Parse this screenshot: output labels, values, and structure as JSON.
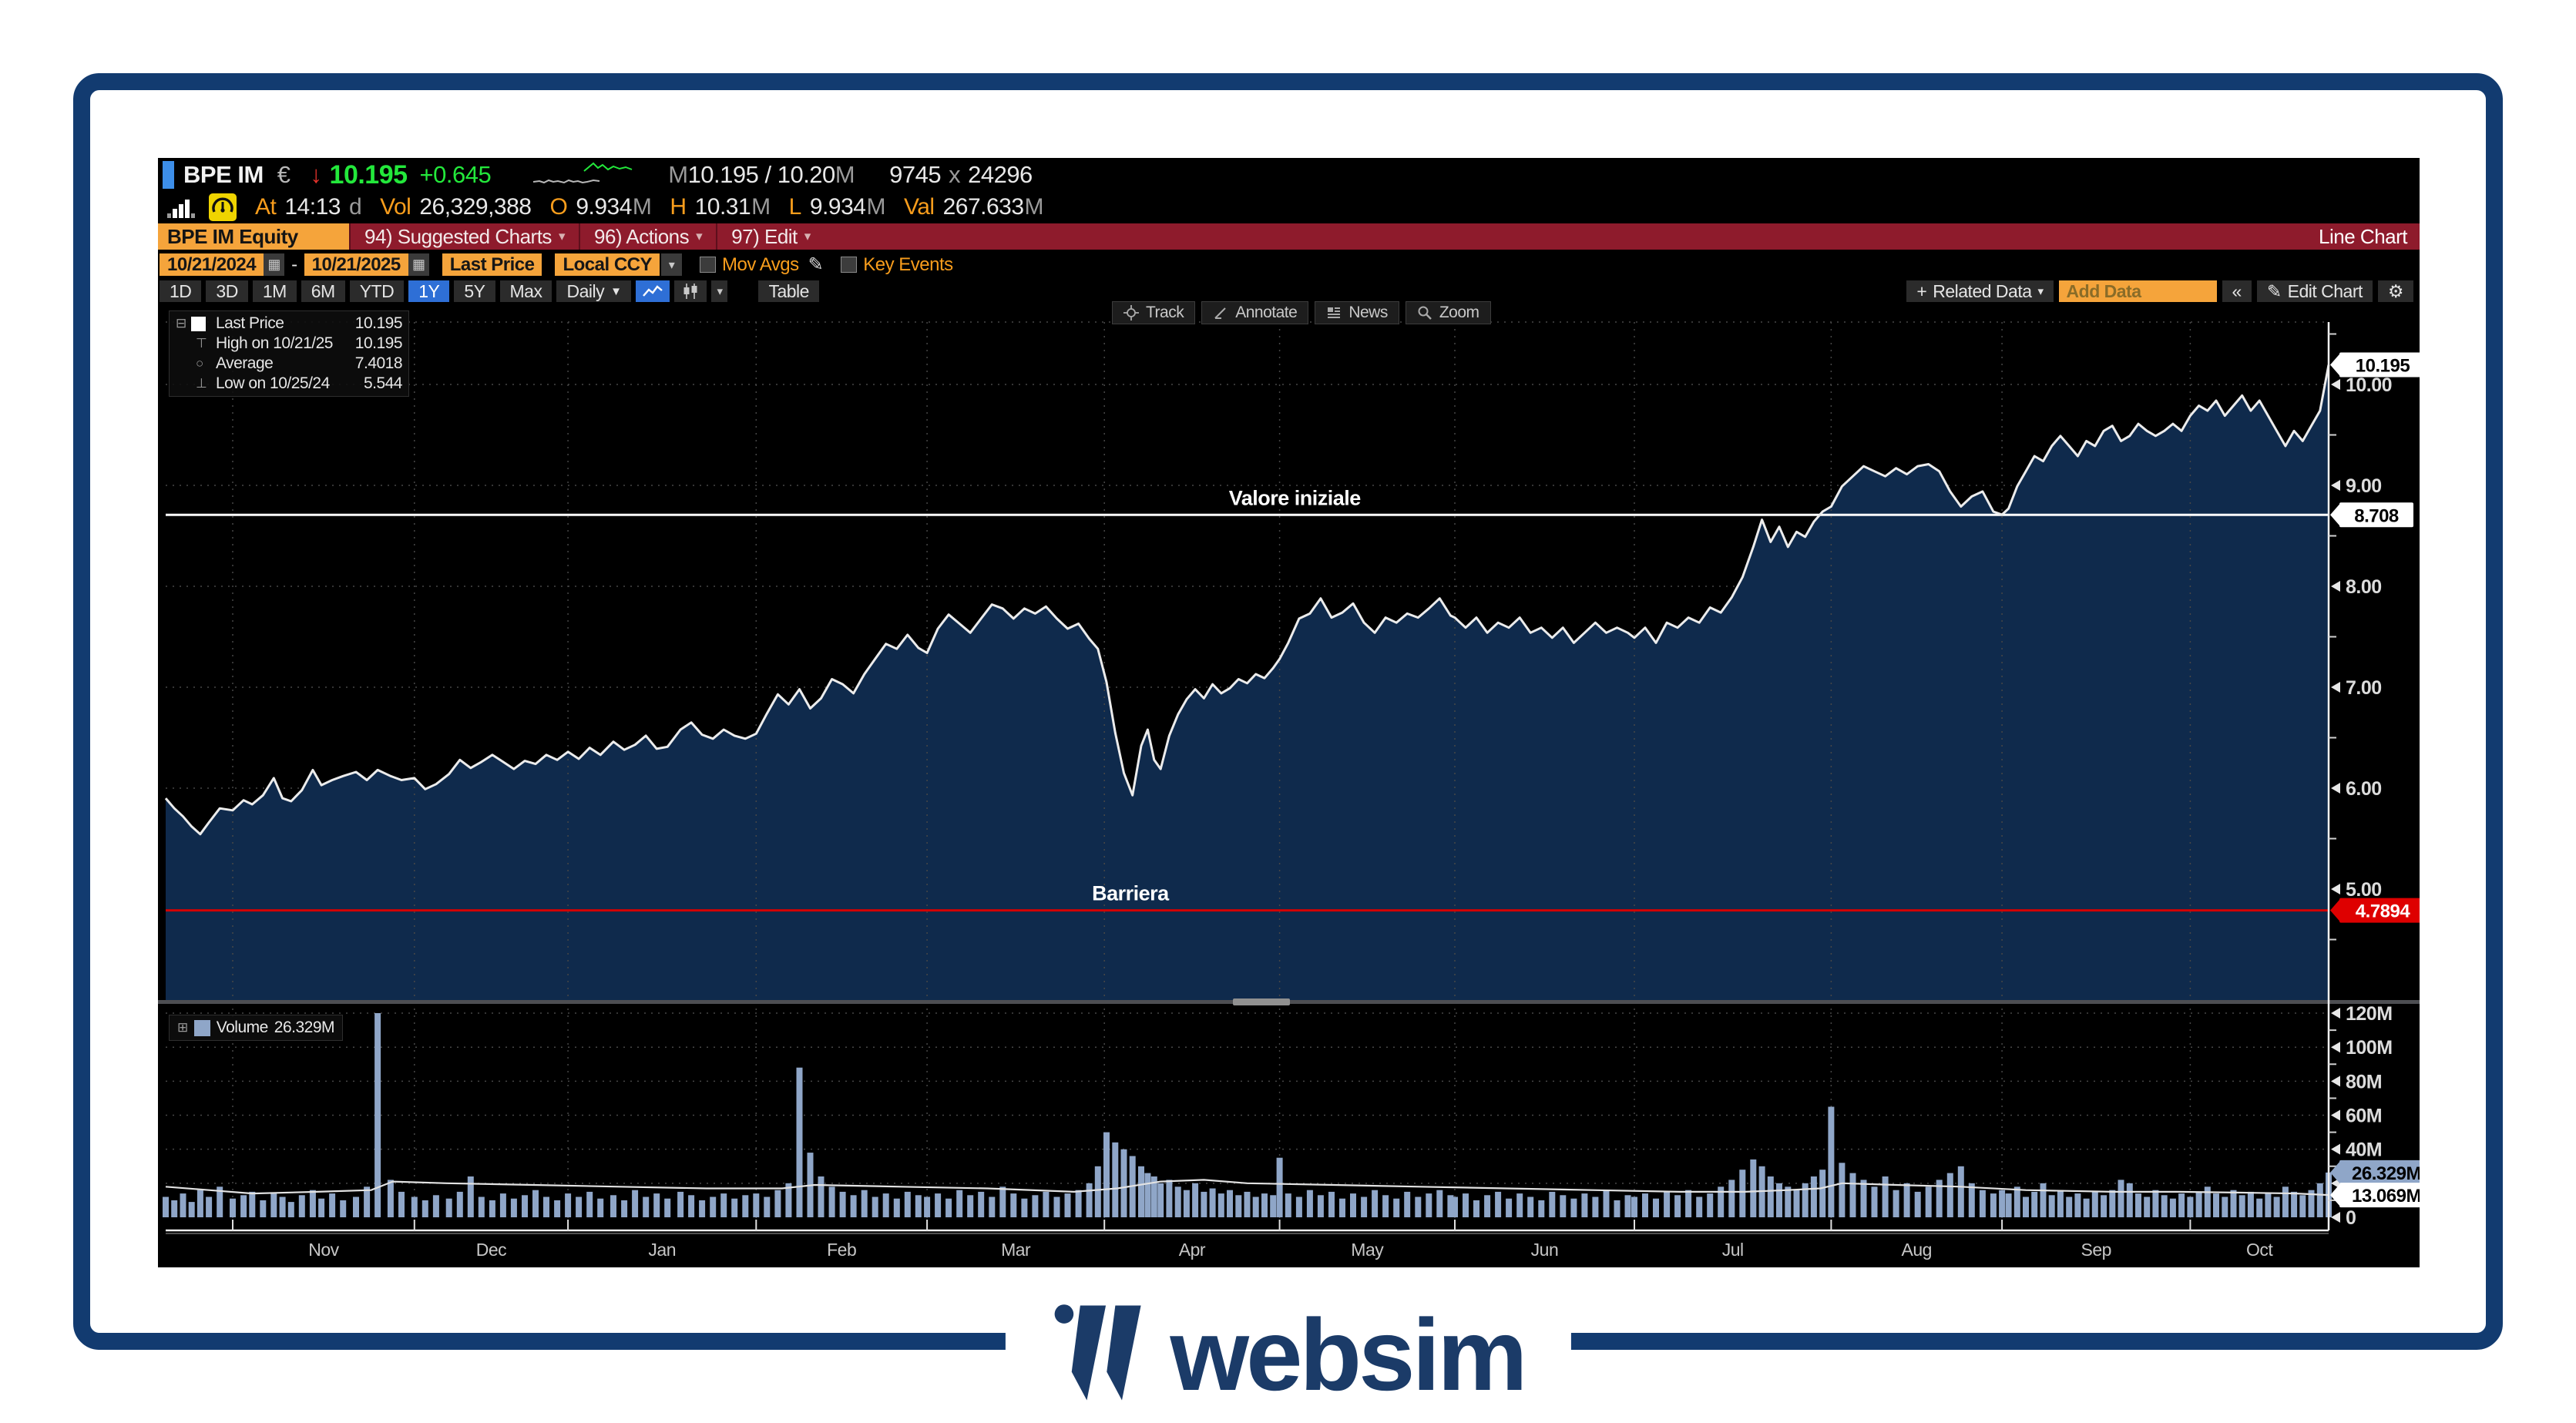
{
  "topbar": {
    "ticker": "BPE IM",
    "currency": "€",
    "last": "10.195",
    "change": "+0.645",
    "bid_ask_pre": "M",
    "bid_ask": "10.195 / 10.20",
    "bid_ask_suf": "M",
    "size_bid": "9745",
    "size_x": "x",
    "size_ask": "24296",
    "at_label": "At",
    "time": "14:13",
    "session": "d",
    "vol_label": "Vol",
    "volume": "26,329,388",
    "o_label": "O",
    "open": "9.934",
    "h_label": "H",
    "high": "10.31",
    "l_label": "L",
    "low": "9.934",
    "val_label": "Val",
    "val": "267.633",
    "msfx": "M",
    "spark": {
      "gray": [
        [
          0,
          28
        ],
        [
          8,
          27
        ],
        [
          14,
          29
        ],
        [
          20,
          26
        ],
        [
          26,
          28
        ],
        [
          32,
          27
        ],
        [
          40,
          29
        ],
        [
          46,
          26
        ],
        [
          52,
          28
        ],
        [
          58,
          27
        ],
        [
          64,
          29
        ],
        [
          70,
          28
        ],
        [
          78,
          26
        ],
        [
          86,
          27
        ]
      ],
      "green": [
        [
          66,
          14
        ],
        [
          72,
          9
        ],
        [
          78,
          4
        ],
        [
          84,
          10
        ],
        [
          90,
          6
        ],
        [
          97,
          12
        ],
        [
          104,
          8
        ],
        [
          112,
          11
        ],
        [
          120,
          9
        ],
        [
          128,
          12
        ]
      ]
    }
  },
  "menubar": {
    "security": "BPE IM Equity",
    "items": [
      "94) Suggested Charts",
      "96) Actions",
      "97) Edit"
    ],
    "right": "Line Chart"
  },
  "datebar": {
    "from": "10/21/2024",
    "dash": "-",
    "to": "10/21/2025",
    "price_type": "Last Price",
    "ccy": "Local CCY",
    "mov_avgs": "Mov Avgs",
    "key_events": "Key Events"
  },
  "periodbar": {
    "periods": [
      "1D",
      "3D",
      "1M",
      "6M",
      "YTD",
      "1Y",
      "5Y",
      "Max"
    ],
    "selected": "1Y",
    "freq": "Daily",
    "table": "Table",
    "related": "Related Data",
    "add_data": "Add Data",
    "edit_chart": "Edit Chart"
  },
  "chart_toolbar": {
    "track": "Track",
    "annotate": "Annotate",
    "news": "News",
    "zoom": "Zoom"
  },
  "legend": {
    "rows": [
      {
        "label": "Last Price",
        "value": "10.195"
      },
      {
        "label": "High on 10/21/25",
        "value": "10.195"
      },
      {
        "label": "Average",
        "value": "7.4018"
      },
      {
        "label": "Low on 10/25/24",
        "value": "5.544"
      }
    ]
  },
  "volume_legend": {
    "label": "Volume",
    "value": "26.329M"
  },
  "footer": {
    "brand": "websim"
  },
  "chart_data": {
    "type": "line",
    "title": "BPE IM Equity Last Price 10/21/2024 - 10/21/2025 Daily",
    "ylim": [
      3.9,
      10.62
    ],
    "vol_ylim": [
      0,
      132
    ],
    "colors": {
      "fill": "#0F2A4C",
      "volume": "#8FA6C8",
      "line": "#ECECEC",
      "barrier": "#D40000",
      "initial": "#FFFFFF"
    },
    "price_ticks": [
      {
        "v": 10,
        "label": "10.00"
      },
      {
        "v": 9,
        "label": "9.00"
      },
      {
        "v": 8,
        "label": "8.00"
      },
      {
        "v": 7,
        "label": "7.00"
      },
      {
        "v": 6,
        "label": "6.00"
      },
      {
        "v": 5,
        "label": "5.00"
      }
    ],
    "minor_price": [
      10.5,
      9.5,
      8.5,
      7.5,
      6.5,
      5.5,
      4.5
    ],
    "vol_ticks": [
      {
        "v": 120,
        "label": "120M"
      },
      {
        "v": 100,
        "label": "100M"
      },
      {
        "v": 80,
        "label": "80M"
      },
      {
        "v": 60,
        "label": "60M"
      },
      {
        "v": 40,
        "label": "40M"
      },
      {
        "v": 20,
        "label": ""
      },
      {
        "v": 0,
        "label": "0"
      }
    ],
    "minor_vol": [
      110,
      90,
      70,
      50,
      30,
      10
    ],
    "month_ticks": [
      0.031,
      0.115,
      0.186,
      0.273,
      0.352,
      0.434,
      0.515,
      0.596,
      0.679,
      0.77,
      0.849,
      0.936
    ],
    "month_labels": [
      "Nov",
      "Dec",
      "Jan",
      "Feb",
      "Mar",
      "Apr",
      "May",
      "Jun",
      "Jul",
      "Aug",
      "Sep",
      "Oct"
    ],
    "hlines": [
      {
        "v": 8.708,
        "color": "#FFFFFF",
        "label": "Valore iniziale",
        "label_t": 0.522
      },
      {
        "v": 4.7894,
        "color": "#D40000",
        "label": "Barriera",
        "label_t": 0.446
      }
    ],
    "price_badges": [
      {
        "v": 10.195,
        "label": "10.195",
        "bg": "#FFFFFF",
        "fg": "#000000",
        "w": 112
      },
      {
        "v": 8.708,
        "label": "8.708",
        "bg": "#FFFFFF",
        "fg": "#000000",
        "w": 96
      },
      {
        "v": 4.7894,
        "label": "4.7894",
        "bg": "#DE0000",
        "fg": "#FFFFFF",
        "w": 112
      }
    ],
    "vol_badges": [
      {
        "v": 26.329,
        "label": "26.329M",
        "bg": "#8FA6C8",
        "fg": "#000000",
        "w": 122
      },
      {
        "v": 13.069,
        "label": "13.069M",
        "bg": "#FFFFFF",
        "fg": "#000000",
        "w": 122
      }
    ],
    "price": [
      [
        0,
        5.9
      ],
      [
        0.004,
        5.8
      ],
      [
        0.008,
        5.72
      ],
      [
        0.012,
        5.62
      ],
      [
        0.016,
        5.544
      ],
      [
        0.02,
        5.66
      ],
      [
        0.025,
        5.8
      ],
      [
        0.031,
        5.78
      ],
      [
        0.036,
        5.88
      ],
      [
        0.04,
        5.84
      ],
      [
        0.045,
        5.93
      ],
      [
        0.05,
        6.1
      ],
      [
        0.054,
        5.9
      ],
      [
        0.058,
        5.87
      ],
      [
        0.063,
        5.98
      ],
      [
        0.068,
        6.18
      ],
      [
        0.072,
        6.03
      ],
      [
        0.077,
        6.08
      ],
      [
        0.082,
        6.12
      ],
      [
        0.088,
        6.16
      ],
      [
        0.093,
        6.08
      ],
      [
        0.098,
        6.18
      ],
      [
        0.104,
        6.12
      ],
      [
        0.109,
        6.08
      ],
      [
        0.115,
        6.1
      ],
      [
        0.12,
        5.99
      ],
      [
        0.125,
        6.04
      ],
      [
        0.131,
        6.14
      ],
      [
        0.136,
        6.28
      ],
      [
        0.141,
        6.2
      ],
      [
        0.146,
        6.26
      ],
      [
        0.151,
        6.33
      ],
      [
        0.156,
        6.26
      ],
      [
        0.161,
        6.19
      ],
      [
        0.166,
        6.27
      ],
      [
        0.171,
        6.24
      ],
      [
        0.176,
        6.33
      ],
      [
        0.181,
        6.28
      ],
      [
        0.186,
        6.36
      ],
      [
        0.191,
        6.29
      ],
      [
        0.196,
        6.4
      ],
      [
        0.201,
        6.33
      ],
      [
        0.207,
        6.46
      ],
      [
        0.212,
        6.38
      ],
      [
        0.217,
        6.43
      ],
      [
        0.222,
        6.52
      ],
      [
        0.227,
        6.39
      ],
      [
        0.232,
        6.41
      ],
      [
        0.238,
        6.58
      ],
      [
        0.243,
        6.65
      ],
      [
        0.248,
        6.53
      ],
      [
        0.253,
        6.49
      ],
      [
        0.258,
        6.58
      ],
      [
        0.263,
        6.52
      ],
      [
        0.268,
        6.49
      ],
      [
        0.273,
        6.54
      ],
      [
        0.278,
        6.74
      ],
      [
        0.283,
        6.93
      ],
      [
        0.288,
        6.83
      ],
      [
        0.293,
        6.98
      ],
      [
        0.298,
        6.79
      ],
      [
        0.303,
        6.89
      ],
      [
        0.308,
        7.08
      ],
      [
        0.313,
        7.03
      ],
      [
        0.318,
        6.94
      ],
      [
        0.323,
        7.13
      ],
      [
        0.328,
        7.28
      ],
      [
        0.333,
        7.43
      ],
      [
        0.338,
        7.38
      ],
      [
        0.343,
        7.52
      ],
      [
        0.348,
        7.39
      ],
      [
        0.352,
        7.34
      ],
      [
        0.357,
        7.58
      ],
      [
        0.362,
        7.72
      ],
      [
        0.367,
        7.63
      ],
      [
        0.372,
        7.54
      ],
      [
        0.377,
        7.68
      ],
      [
        0.382,
        7.82
      ],
      [
        0.387,
        7.78
      ],
      [
        0.392,
        7.68
      ],
      [
        0.397,
        7.78
      ],
      [
        0.402,
        7.73
      ],
      [
        0.407,
        7.8
      ],
      [
        0.412,
        7.68
      ],
      [
        0.417,
        7.58
      ],
      [
        0.422,
        7.63
      ],
      [
        0.427,
        7.48
      ],
      [
        0.431,
        7.38
      ],
      [
        0.435,
        7.05
      ],
      [
        0.439,
        6.55
      ],
      [
        0.443,
        6.15
      ],
      [
        0.447,
        5.93
      ],
      [
        0.451,
        6.42
      ],
      [
        0.454,
        6.58
      ],
      [
        0.457,
        6.28
      ],
      [
        0.46,
        6.19
      ],
      [
        0.464,
        6.52
      ],
      [
        0.468,
        6.73
      ],
      [
        0.472,
        6.88
      ],
      [
        0.476,
        6.98
      ],
      [
        0.48,
        6.89
      ],
      [
        0.484,
        7.03
      ],
      [
        0.488,
        6.94
      ],
      [
        0.492,
        6.99
      ],
      [
        0.496,
        7.08
      ],
      [
        0.5,
        7.04
      ],
      [
        0.504,
        7.13
      ],
      [
        0.508,
        7.09
      ],
      [
        0.512,
        7.19
      ],
      [
        0.515,
        7.28
      ],
      [
        0.519,
        7.44
      ],
      [
        0.524,
        7.68
      ],
      [
        0.529,
        7.73
      ],
      [
        0.534,
        7.88
      ],
      [
        0.539,
        7.69
      ],
      [
        0.544,
        7.74
      ],
      [
        0.549,
        7.83
      ],
      [
        0.554,
        7.64
      ],
      [
        0.559,
        7.54
      ],
      [
        0.564,
        7.69
      ],
      [
        0.569,
        7.64
      ],
      [
        0.574,
        7.73
      ],
      [
        0.579,
        7.69
      ],
      [
        0.584,
        7.78
      ],
      [
        0.589,
        7.88
      ],
      [
        0.594,
        7.71
      ],
      [
        0.596,
        7.69
      ],
      [
        0.601,
        7.59
      ],
      [
        0.606,
        7.69
      ],
      [
        0.611,
        7.54
      ],
      [
        0.616,
        7.64
      ],
      [
        0.621,
        7.59
      ],
      [
        0.626,
        7.69
      ],
      [
        0.631,
        7.54
      ],
      [
        0.636,
        7.59
      ],
      [
        0.641,
        7.49
      ],
      [
        0.646,
        7.59
      ],
      [
        0.651,
        7.44
      ],
      [
        0.656,
        7.54
      ],
      [
        0.661,
        7.64
      ],
      [
        0.666,
        7.54
      ],
      [
        0.671,
        7.59
      ],
      [
        0.676,
        7.54
      ],
      [
        0.679,
        7.49
      ],
      [
        0.684,
        7.59
      ],
      [
        0.689,
        7.44
      ],
      [
        0.694,
        7.64
      ],
      [
        0.699,
        7.59
      ],
      [
        0.704,
        7.69
      ],
      [
        0.709,
        7.64
      ],
      [
        0.714,
        7.79
      ],
      [
        0.719,
        7.74
      ],
      [
        0.724,
        7.89
      ],
      [
        0.729,
        8.09
      ],
      [
        0.734,
        8.39
      ],
      [
        0.738,
        8.66
      ],
      [
        0.742,
        8.44
      ],
      [
        0.746,
        8.59
      ],
      [
        0.75,
        8.39
      ],
      [
        0.754,
        8.54
      ],
      [
        0.758,
        8.49
      ],
      [
        0.762,
        8.64
      ],
      [
        0.766,
        8.74
      ],
      [
        0.77,
        8.79
      ],
      [
        0.775,
        8.99
      ],
      [
        0.78,
        9.09
      ],
      [
        0.785,
        9.19
      ],
      [
        0.79,
        9.14
      ],
      [
        0.795,
        9.09
      ],
      [
        0.8,
        9.17
      ],
      [
        0.805,
        9.11
      ],
      [
        0.81,
        9.19
      ],
      [
        0.815,
        9.21
      ],
      [
        0.82,
        9.14
      ],
      [
        0.825,
        8.94
      ],
      [
        0.83,
        8.79
      ],
      [
        0.835,
        8.89
      ],
      [
        0.84,
        8.94
      ],
      [
        0.845,
        8.74
      ],
      [
        0.849,
        8.71
      ],
      [
        0.852,
        8.77
      ],
      [
        0.856,
        8.99
      ],
      [
        0.86,
        9.14
      ],
      [
        0.864,
        9.29
      ],
      [
        0.868,
        9.24
      ],
      [
        0.872,
        9.39
      ],
      [
        0.876,
        9.49
      ],
      [
        0.88,
        9.39
      ],
      [
        0.884,
        9.29
      ],
      [
        0.888,
        9.44
      ],
      [
        0.892,
        9.39
      ],
      [
        0.896,
        9.54
      ],
      [
        0.9,
        9.59
      ],
      [
        0.904,
        9.44
      ],
      [
        0.908,
        9.49
      ],
      [
        0.912,
        9.61
      ],
      [
        0.916,
        9.54
      ],
      [
        0.92,
        9.49
      ],
      [
        0.924,
        9.54
      ],
      [
        0.928,
        9.61
      ],
      [
        0.932,
        9.54
      ],
      [
        0.936,
        9.69
      ],
      [
        0.94,
        9.79
      ],
      [
        0.944,
        9.74
      ],
      [
        0.948,
        9.84
      ],
      [
        0.952,
        9.69
      ],
      [
        0.956,
        9.79
      ],
      [
        0.96,
        9.89
      ],
      [
        0.964,
        9.74
      ],
      [
        0.968,
        9.84
      ],
      [
        0.972,
        9.69
      ],
      [
        0.976,
        9.54
      ],
      [
        0.98,
        9.39
      ],
      [
        0.984,
        9.54
      ],
      [
        0.988,
        9.44
      ],
      [
        0.992,
        9.59
      ],
      [
        0.996,
        9.74
      ],
      [
        1,
        10.195
      ]
    ],
    "volumes": [
      12,
      10,
      14,
      9,
      16,
      12,
      18,
      11,
      13,
      15,
      10,
      14,
      12,
      9,
      13,
      16,
      11,
      14,
      10,
      12,
      18,
      120,
      22,
      15,
      12,
      10,
      13,
      11,
      15,
      24,
      12,
      10,
      14,
      11,
      13,
      16,
      12,
      10,
      14,
      12,
      15,
      11,
      13,
      10,
      16,
      12,
      14,
      11,
      15,
      13,
      10,
      12,
      14,
      11,
      13,
      14,
      12,
      16,
      20,
      88,
      38,
      24,
      18,
      15,
      13,
      16,
      12,
      14,
      11,
      15,
      13,
      12,
      14,
      11,
      16,
      13,
      15,
      12,
      18,
      14,
      11,
      13,
      15,
      12,
      14,
      16,
      20,
      30,
      50,
      44,
      40,
      36,
      30,
      26,
      24,
      20,
      22,
      18,
      16,
      20,
      15,
      17,
      14,
      16,
      13,
      15,
      12,
      14,
      13,
      35,
      14,
      12,
      16,
      13,
      15,
      11,
      14,
      12,
      16,
      13,
      11,
      15,
      12,
      14,
      16,
      13,
      12,
      14,
      10,
      13,
      15,
      11,
      14,
      12,
      10,
      15,
      13,
      11,
      14,
      12,
      16,
      10,
      13,
      12,
      14,
      11,
      15,
      13,
      16,
      12,
      14,
      18,
      22,
      28,
      34,
      30,
      24,
      20,
      18,
      16,
      20,
      24,
      28,
      65,
      32,
      26,
      22,
      18,
      24,
      16,
      20,
      15,
      18,
      22,
      26,
      30,
      20,
      16,
      14,
      16,
      14,
      18,
      12,
      15,
      20,
      13,
      16,
      12,
      14,
      11,
      15,
      13,
      16,
      22,
      20,
      14,
      12,
      16,
      13,
      11,
      14,
      12,
      15,
      18,
      14,
      12,
      16,
      13,
      15,
      11,
      14,
      12,
      18,
      15,
      13,
      16,
      20,
      26.3
    ],
    "vol_avg": [
      [
        0,
        18
      ],
      [
        0.02,
        16
      ],
      [
        0.04,
        14
      ],
      [
        0.07,
        15
      ],
      [
        0.095,
        16
      ],
      [
        0.105,
        21
      ],
      [
        0.13,
        20
      ],
      [
        0.17,
        19
      ],
      [
        0.21,
        18
      ],
      [
        0.25,
        17
      ],
      [
        0.285,
        17
      ],
      [
        0.3,
        19
      ],
      [
        0.34,
        18
      ],
      [
        0.38,
        17
      ],
      [
        0.42,
        15
      ],
      [
        0.44,
        17
      ],
      [
        0.46,
        21
      ],
      [
        0.48,
        22
      ],
      [
        0.5,
        20
      ],
      [
        0.54,
        19
      ],
      [
        0.58,
        18
      ],
      [
        0.62,
        17
      ],
      [
        0.66,
        16
      ],
      [
        0.7,
        15
      ],
      [
        0.73,
        15
      ],
      [
        0.75,
        16
      ],
      [
        0.765,
        17
      ],
      [
        0.775,
        20
      ],
      [
        0.8,
        19
      ],
      [
        0.83,
        18
      ],
      [
        0.86,
        16
      ],
      [
        0.9,
        15
      ],
      [
        0.93,
        15
      ],
      [
        0.96,
        14.5
      ],
      [
        0.985,
        14
      ],
      [
        1,
        13.069
      ]
    ]
  }
}
